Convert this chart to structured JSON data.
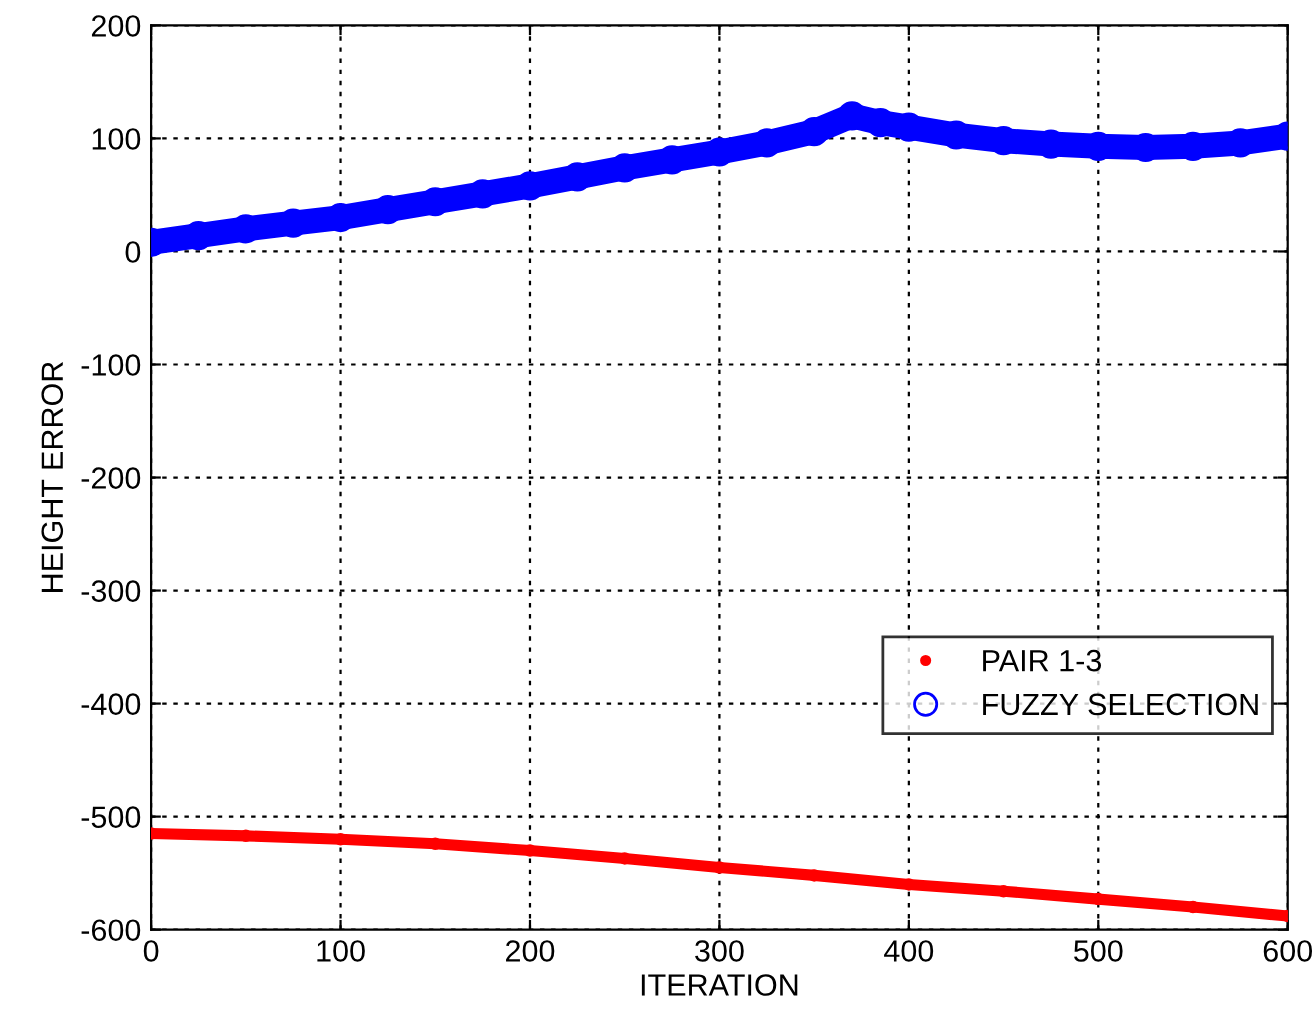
{
  "chart_data": {
    "type": "line",
    "xlabel": "ITERATION",
    "ylabel": "HEIGHT ERROR",
    "xlim": [
      0,
      600
    ],
    "ylim": [
      -600,
      200
    ],
    "xticks": [
      0,
      100,
      200,
      300,
      400,
      500,
      600
    ],
    "yticks": [
      -600,
      -500,
      -400,
      -300,
      -200,
      -100,
      0,
      100,
      200
    ],
    "grid": true,
    "legend": "bottom right",
    "series": [
      {
        "name": "PAIR 1-3",
        "color": "#ff0000",
        "marker": "circle",
        "x": [
          0,
          50,
          100,
          150,
          200,
          250,
          300,
          350,
          400,
          450,
          500,
          550,
          600
        ],
        "values": [
          -515,
          -517,
          -520,
          -524,
          -530,
          -537,
          -545,
          -552,
          -560,
          -566,
          -573,
          -580,
          -588
        ]
      },
      {
        "name": "FUZZY SELECTION",
        "color": "#0000ff",
        "marker": "circle",
        "x": [
          0,
          25,
          50,
          75,
          100,
          125,
          150,
          175,
          200,
          225,
          250,
          275,
          300,
          325,
          350,
          370,
          385,
          400,
          425,
          450,
          475,
          500,
          525,
          550,
          575,
          600
        ],
        "values": [
          8,
          14,
          20,
          25,
          30,
          37,
          44,
          51,
          58,
          66,
          74,
          81,
          88,
          96,
          106,
          120,
          114,
          110,
          103,
          98,
          95,
          93,
          92,
          93,
          96,
          102
        ]
      }
    ]
  }
}
